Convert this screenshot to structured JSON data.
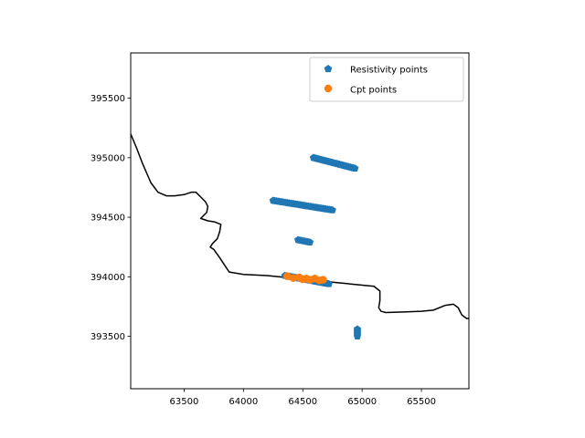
{
  "chart_data": {
    "type": "scatter",
    "title": "",
    "xlabel": "",
    "ylabel": "",
    "xlim": [
      63050,
      65900
    ],
    "ylim": [
      393060,
      395880
    ],
    "xticks": [
      63500,
      64000,
      64500,
      65000,
      65500
    ],
    "yticks": [
      393500,
      394000,
      394500,
      395000,
      395500
    ],
    "grid": false,
    "legend_position": "upper-right",
    "legend": [
      {
        "label": "Resistivity points",
        "marker": "pentagon",
        "color": "#1f77b4"
      },
      {
        "label": "Cpt points",
        "marker": "circle",
        "color": "#ff7f0e"
      }
    ],
    "series": [
      {
        "name": "Resistivity points",
        "color": "#1f77b4",
        "marker": "pentagon",
        "segments": [
          {
            "from": [
              64590,
              395000
            ],
            "to": [
              64940,
              394910
            ],
            "count": 28
          },
          {
            "from": [
              64250,
              394640
            ],
            "to": [
              64750,
              394560
            ],
            "count": 38
          },
          {
            "from": [
              64460,
              394310
            ],
            "to": [
              64560,
              394290
            ],
            "count": 8
          },
          {
            "from": [
              64350,
              394010
            ],
            "to": [
              64720,
              393940
            ],
            "count": 28
          },
          {
            "from": [
              64960,
              393560
            ],
            "to": [
              64960,
              393500
            ],
            "count": 6
          }
        ]
      },
      {
        "name": "Cpt points",
        "color": "#ff7f0e",
        "marker": "circle",
        "x": [
          64370,
          64420,
          64470,
          64500,
          64530,
          64560,
          64600,
          64640,
          64670
        ],
        "y": [
          394005,
          393990,
          393995,
          393980,
          393985,
          393975,
          393985,
          393970,
          393975
        ]
      }
    ],
    "boundary": {
      "color": "#000000",
      "x": [
        63050,
        63100,
        63150,
        63220,
        63280,
        63350,
        63420,
        63500,
        63560,
        63600,
        63640,
        63680,
        63700,
        63690,
        63660,
        63640,
        63700,
        63760,
        63810,
        63800,
        63780,
        63740,
        63720,
        63750,
        63800,
        63840,
        63880,
        64000,
        64200,
        64400,
        64600,
        64800,
        65000,
        65100,
        65150,
        65150,
        65140,
        65160,
        65200,
        65350,
        65500,
        65600,
        65700,
        65770,
        65810,
        65840,
        65880,
        65900
      ],
      "y": [
        395200,
        395080,
        394950,
        394790,
        394710,
        394680,
        394680,
        394690,
        394710,
        394710,
        394670,
        394630,
        394590,
        394540,
        394510,
        394490,
        394470,
        394460,
        394440,
        394380,
        394320,
        394280,
        394250,
        394230,
        394160,
        394100,
        394040,
        394020,
        394010,
        393990,
        393970,
        393950,
        393930,
        393920,
        393880,
        393800,
        393740,
        393710,
        393700,
        393705,
        393710,
        393720,
        393760,
        393770,
        393740,
        393680,
        393650,
        393650
      ]
    }
  }
}
